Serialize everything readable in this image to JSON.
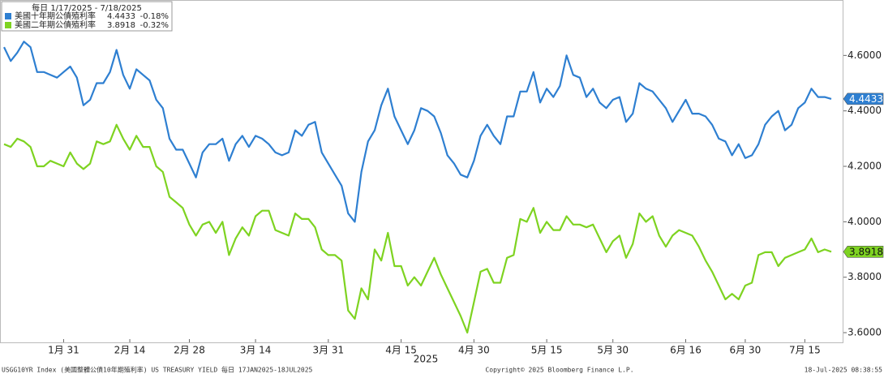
{
  "chart_data": {
    "type": "line",
    "legend_title": "每日 1/17/2025 - 7/18/2025",
    "x_axis_label": "2025",
    "footer_left": "USGG10YR Index (美國整體公債10年期殖利率) US TREASURY YIELD  每日 17JAN2025-18JUL2025",
    "footer_center": "Copyright© 2025 Bloomberg Finance L.P.",
    "footer_right": "18-Jul-2025 08:38:55",
    "ylim": [
      3.565,
      4.8
    ],
    "yticks": [
      {
        "value": 3.6,
        "label": "3.6000"
      },
      {
        "value": 3.8,
        "label": "3.8000"
      },
      {
        "value": 4.0,
        "label": "4.0000"
      },
      {
        "value": 4.2,
        "label": "4.2000"
      },
      {
        "value": 4.4,
        "label": "4.4000"
      },
      {
        "value": 4.6,
        "label": "4.6000"
      }
    ],
    "grid": false,
    "legend": "top-left",
    "categories": [
      null,
      null,
      null,
      null,
      null,
      null,
      null,
      null,
      null,
      "1月 31",
      null,
      null,
      null,
      null,
      null,
      null,
      null,
      null,
      null,
      "2月 14",
      null,
      null,
      null,
      null,
      null,
      null,
      null,
      null,
      "2月 28",
      null,
      null,
      null,
      null,
      null,
      null,
      null,
      null,
      null,
      "3月 14",
      null,
      null,
      null,
      null,
      null,
      null,
      null,
      null,
      null,
      null,
      "3月 31",
      null,
      null,
      null,
      null,
      null,
      null,
      null,
      null,
      null,
      null,
      "4月 15",
      null,
      null,
      null,
      null,
      null,
      null,
      null,
      null,
      null,
      null,
      "4月 30",
      null,
      null,
      null,
      null,
      null,
      null,
      null,
      null,
      null,
      null,
      "5月 15",
      null,
      null,
      null,
      null,
      null,
      null,
      null,
      null,
      null,
      "5月 30",
      null,
      null,
      null,
      null,
      null,
      null,
      null,
      null,
      null,
      null,
      "6月 16",
      null,
      null,
      null,
      null,
      null,
      null,
      null,
      null,
      "6月 30",
      null,
      null,
      null,
      null,
      null,
      null,
      null,
      null,
      "7月 15",
      null,
      null,
      null,
      null
    ],
    "series": [
      {
        "name": "美國十年期公債殖利率",
        "change": "-0.18%",
        "color": "#2e7fd1",
        "values": [
          4.63,
          4.58,
          4.61,
          4.65,
          4.63,
          4.54,
          4.54,
          4.53,
          4.52,
          4.54,
          4.56,
          4.52,
          4.42,
          4.44,
          4.5,
          4.5,
          4.54,
          4.62,
          4.53,
          4.48,
          4.55,
          4.53,
          4.51,
          4.44,
          4.41,
          4.3,
          4.26,
          4.26,
          4.21,
          4.16,
          4.25,
          4.28,
          4.28,
          4.3,
          4.22,
          4.28,
          4.31,
          4.27,
          4.31,
          4.3,
          4.28,
          4.25,
          4.24,
          4.25,
          4.33,
          4.31,
          4.35,
          4.36,
          4.25,
          4.21,
          4.17,
          4.13,
          4.03,
          4.0,
          4.18,
          4.29,
          4.33,
          4.42,
          4.48,
          4.38,
          4.33,
          4.28,
          4.33,
          4.41,
          4.4,
          4.38,
          4.32,
          4.24,
          4.21,
          4.17,
          4.16,
          4.22,
          4.31,
          4.35,
          4.31,
          4.28,
          4.38,
          4.38,
          4.47,
          4.47,
          4.54,
          4.43,
          4.48,
          4.45,
          4.49,
          4.6,
          4.53,
          4.52,
          4.45,
          4.48,
          4.43,
          4.41,
          4.44,
          4.45,
          4.36,
          4.39,
          4.5,
          4.48,
          4.47,
          4.44,
          4.41,
          4.36,
          4.4,
          4.44,
          4.39,
          4.39,
          4.38,
          4.35,
          4.3,
          4.29,
          4.24,
          4.28,
          4.23,
          4.24,
          4.28,
          4.35,
          4.38,
          4.4,
          4.33,
          4.35,
          4.41,
          4.43,
          4.48,
          4.45,
          4.45,
          4.4433
        ]
      },
      {
        "name": "美國二年期公債殖利率",
        "change": "-0.32%",
        "color": "#7ed321",
        "values": [
          4.28,
          4.27,
          4.3,
          4.29,
          4.27,
          4.2,
          4.2,
          4.22,
          4.21,
          4.2,
          4.25,
          4.21,
          4.19,
          4.21,
          4.29,
          4.28,
          4.29,
          4.35,
          4.3,
          4.26,
          4.31,
          4.27,
          4.27,
          4.2,
          4.18,
          4.09,
          4.07,
          4.05,
          3.99,
          3.95,
          3.99,
          4.0,
          3.96,
          4.0,
          3.88,
          3.94,
          3.98,
          3.95,
          4.02,
          4.04,
          4.04,
          3.97,
          3.96,
          3.95,
          4.03,
          4.01,
          4.01,
          3.98,
          3.9,
          3.88,
          3.88,
          3.86,
          3.68,
          3.65,
          3.76,
          3.72,
          3.9,
          3.86,
          3.96,
          3.84,
          3.84,
          3.77,
          3.8,
          3.77,
          3.82,
          3.87,
          3.81,
          3.76,
          3.71,
          3.66,
          3.6,
          3.71,
          3.82,
          3.83,
          3.78,
          3.78,
          3.87,
          3.88,
          4.01,
          4.0,
          4.05,
          3.96,
          4.0,
          3.97,
          3.97,
          4.02,
          3.99,
          3.99,
          3.98,
          3.99,
          3.94,
          3.89,
          3.93,
          3.95,
          3.87,
          3.92,
          4.03,
          4.0,
          4.02,
          3.95,
          3.91,
          3.95,
          3.97,
          3.96,
          3.95,
          3.91,
          3.86,
          3.82,
          3.77,
          3.72,
          3.74,
          3.72,
          3.77,
          3.78,
          3.88,
          3.89,
          3.89,
          3.84,
          3.87,
          3.88,
          3.89,
          3.9,
          3.94,
          3.89,
          3.9,
          3.8918
        ]
      }
    ]
  }
}
